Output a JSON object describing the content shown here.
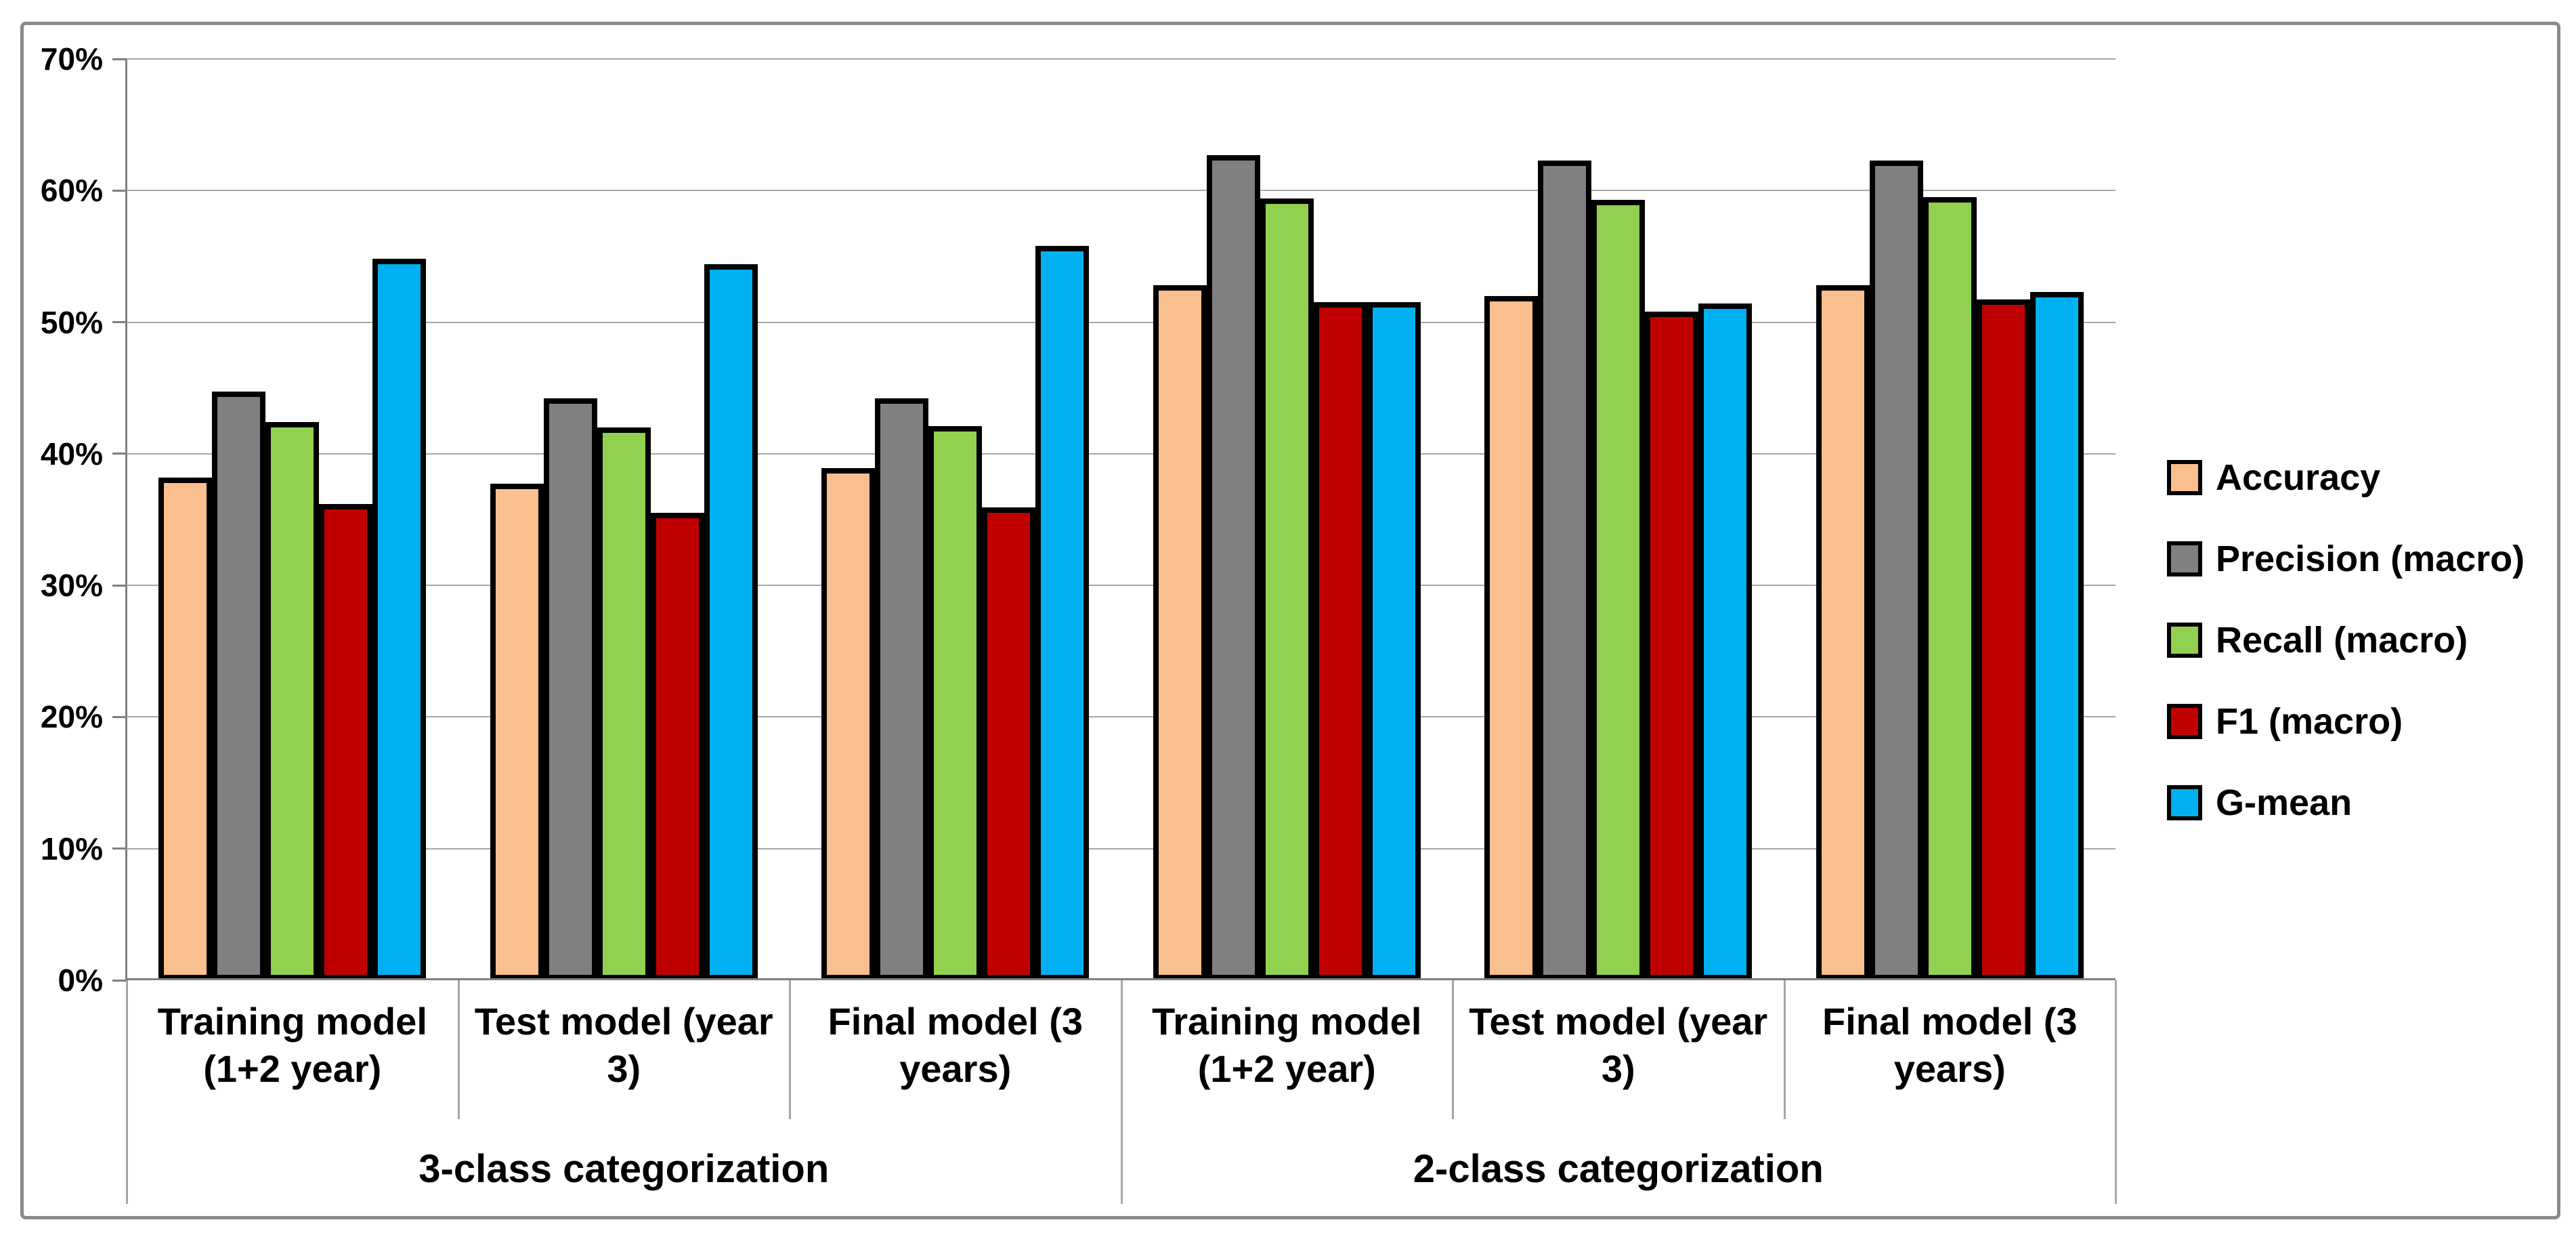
{
  "chart_data": {
    "type": "bar",
    "title": "",
    "xlabel": "",
    "ylabel": "",
    "grid": true,
    "legend_position": "right",
    "y_axis": {
      "min": 0,
      "max": 70,
      "step": 10,
      "unit": "%",
      "tick_labels": [
        "0%",
        "10%",
        "20%",
        "30%",
        "40%",
        "50%",
        "60%",
        "70%"
      ]
    },
    "category_groups": [
      {
        "label": "3-class categorization",
        "categories": [
          "Training model (1+2 year)",
          "Test model (year 3)",
          "Final model (3 years)"
        ]
      },
      {
        "label": "2-class categorization",
        "categories": [
          "Training model (1+2 year)",
          "Test model (year 3)",
          "Final model (3 years)"
        ]
      }
    ],
    "series": [
      {
        "name": "Accuracy",
        "color": "#FABF8F",
        "values": [
          38.0,
          37.5,
          38.7,
          52.6,
          51.8,
          52.6
        ]
      },
      {
        "name": "Precision (macro)",
        "color": "#808080",
        "values": [
          44.5,
          44.0,
          44.0,
          62.5,
          62.1,
          62.1
        ]
      },
      {
        "name": "Recall (macro)",
        "color": "#92D050",
        "values": [
          42.2,
          41.8,
          41.9,
          59.2,
          59.1,
          59.3
        ]
      },
      {
        "name": "F1 (macro)",
        "color": "#C00000",
        "values": [
          36.0,
          35.3,
          35.7,
          51.3,
          50.6,
          51.5
        ]
      },
      {
        "name": "G-mean",
        "color": "#00B0F0",
        "values": [
          54.6,
          54.2,
          55.6,
          51.3,
          51.2,
          52.1
        ]
      }
    ],
    "bar_outline_color": "#000000",
    "gridline_color": "#A6A6A6",
    "axis_color": "#7F7F7F"
  }
}
